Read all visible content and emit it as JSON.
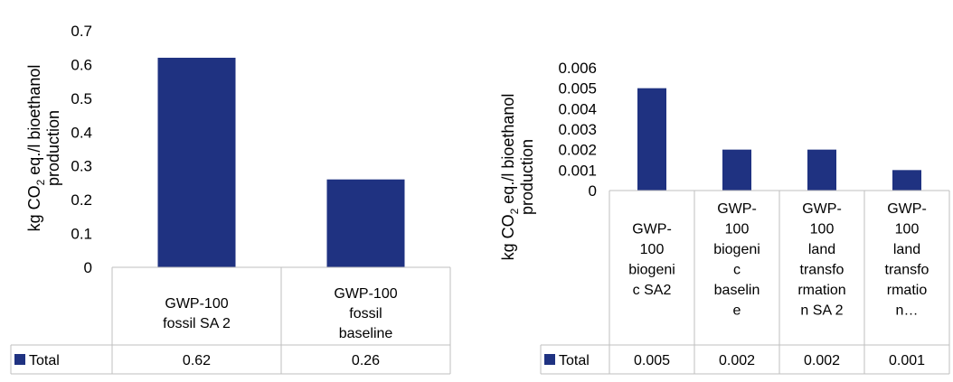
{
  "chart_data": [
    {
      "type": "bar",
      "categories": [
        "GWP-100 fossil SA 2",
        "GWP-100 fossil baseline"
      ],
      "category_lines": [
        [
          "GWP-100",
          "fossil SA 2"
        ],
        [
          "GWP-100",
          "fossil",
          "baseline"
        ]
      ],
      "series": [
        {
          "name": "Total",
          "values": [
            0.62,
            0.26
          ]
        }
      ],
      "value_labels": [
        "0.62",
        "0.26"
      ],
      "y_ticks": [
        "0",
        "0.1",
        "0.2",
        "0.3",
        "0.4",
        "0.5",
        "0.6",
        "0.7"
      ],
      "ylim": [
        0,
        0.7
      ],
      "ylabel_lines": [
        "kg CO2 eq./l bioethanol",
        "production"
      ],
      "ylabel_parts": {
        "pre": "kg CO",
        "sub": "2",
        "post": " eq./l bioethanol",
        "line2": "production"
      },
      "legend": "bottom-table",
      "grid": false
    },
    {
      "type": "bar",
      "categories": [
        "GWP-100 biogenic SA2",
        "GWP-100 biogenic baseline",
        "GWP-100 land transformation SA 2",
        "GWP-100 land transformation…"
      ],
      "category_lines": [
        [
          "GWP-",
          "100",
          "biogeni",
          "c SA2"
        ],
        [
          "GWP-",
          "100",
          "biogeni",
          "c",
          "baselin",
          "e"
        ],
        [
          "GWP-",
          "100",
          "land",
          "transfo",
          "rmation",
          "n SA 2"
        ],
        [
          "GWP-",
          "100",
          "land",
          "transfo",
          "rmatio",
          "n…"
        ]
      ],
      "series": [
        {
          "name": "Total",
          "values": [
            0.005,
            0.002,
            0.002,
            0.001
          ]
        }
      ],
      "value_labels": [
        "0.005",
        "0.002",
        "0.002",
        "0.001"
      ],
      "y_ticks": [
        "0",
        "0.001",
        "0.002",
        "0.003",
        "0.004",
        "0.005",
        "0.006"
      ],
      "ylim": [
        0,
        0.006
      ],
      "ylabel_lines": [
        "kg CO2 eq./l bioethanol",
        "production"
      ],
      "ylabel_parts": {
        "pre": "kg CO",
        "sub": "2",
        "post": " eq./l bioethanol",
        "line2": "production"
      },
      "legend": "bottom-table",
      "grid": false
    }
  ],
  "colors": {
    "bar": "#1F3281",
    "axis": "#BFBFBF",
    "text": "#000000"
  }
}
